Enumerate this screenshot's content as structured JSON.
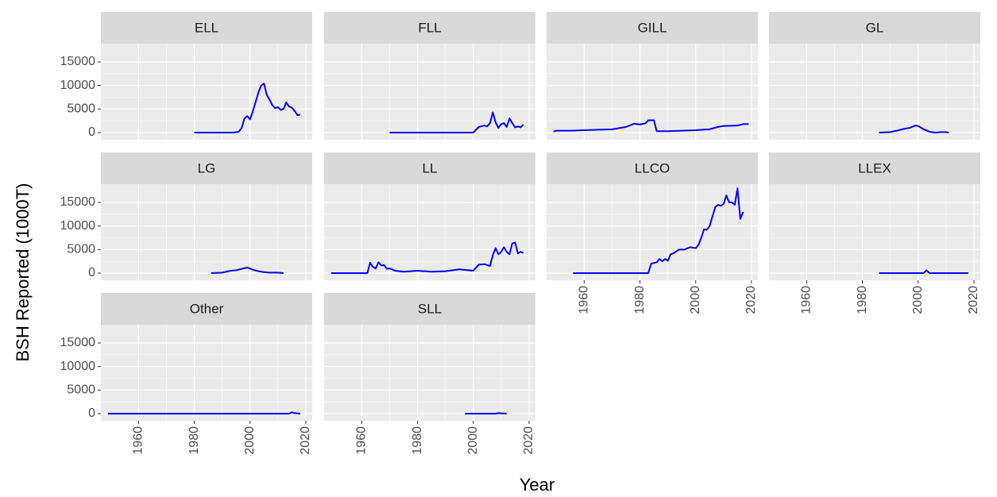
{
  "x_label": "Year",
  "y_label": "BSH Reported (1000T)",
  "chart_data": [
    {
      "type": "line",
      "title": "ELL",
      "xlim": [
        1946.5,
        2022.3
      ],
      "ylim": [
        -1520,
        18880
      ],
      "xticks": [
        1960,
        1980,
        2000,
        2020
      ],
      "yticks": [
        0,
        5000,
        10000,
        15000
      ],
      "grid": true,
      "x": [
        1980,
        1985,
        1990,
        1994,
        1996,
        1997,
        1998,
        1999,
        2000,
        2001,
        2002,
        2003,
        2004,
        2005,
        2006,
        2007,
        2008,
        2009,
        2010,
        2011,
        2012,
        2013,
        2014,
        2015,
        2016,
        2017,
        2018
      ],
      "series": [
        {
          "color": "#0000ff",
          "values": [
            0,
            0,
            0,
            0,
            200,
            1000,
            3000,
            3500,
            2800,
            4500,
            6500,
            8500,
            10000,
            10400,
            8000,
            7000,
            5800,
            5200,
            5400,
            4800,
            5000,
            6400,
            5500,
            5300,
            4600,
            3700,
            3800
          ]
        }
      ]
    },
    {
      "type": "line",
      "title": "FLL",
      "xlim": [
        1946.5,
        2022.3
      ],
      "ylim": [
        -1520,
        18880
      ],
      "xticks": [
        1960,
        1980,
        2000,
        2020
      ],
      "yticks": [
        0,
        5000,
        10000,
        15000
      ],
      "grid": true,
      "x": [
        1970,
        2000,
        2002,
        2004,
        2005,
        2006,
        2007,
        2008,
        2009,
        2010,
        2011,
        2012,
        2013,
        2014,
        2015,
        2016,
        2017,
        2018
      ],
      "series": [
        {
          "color": "#0000ff",
          "values": [
            0,
            0,
            1200,
            1500,
            1300,
            2000,
            4300,
            2200,
            1000,
            1800,
            2000,
            1200,
            3000,
            2000,
            1100,
            1300,
            1100,
            1700
          ]
        }
      ]
    },
    {
      "type": "line",
      "title": "GILL",
      "xlim": [
        1946.5,
        2022.3
      ],
      "ylim": [
        -1520,
        18880
      ],
      "xticks": [
        1960,
        1980,
        2000,
        2020
      ],
      "yticks": [
        0,
        5000,
        10000,
        15000
      ],
      "grid": true,
      "x": [
        1949,
        1950,
        1955,
        1960,
        1965,
        1970,
        1975,
        1978,
        1980,
        1982,
        1983,
        1985,
        1986,
        1990,
        1995,
        2000,
        2005,
        2008,
        2010,
        2015,
        2017,
        2019
      ],
      "series": [
        {
          "color": "#0000ff",
          "values": [
            200,
            400,
            400,
            500,
            600,
            700,
            1200,
            1900,
            1700,
            2000,
            2600,
            2600,
            300,
            300,
            400,
            500,
            700,
            1200,
            1400,
            1500,
            1800,
            1800
          ]
        }
      ]
    },
    {
      "type": "line",
      "title": "GL",
      "xlim": [
        1946.5,
        2022.3
      ],
      "ylim": [
        -1520,
        18880
      ],
      "xticks": [
        1960,
        1980,
        2000,
        2020
      ],
      "yticks": [
        0,
        5000,
        10000,
        15000
      ],
      "grid": true,
      "x": [
        1986,
        1990,
        1993,
        1995,
        1997,
        1999,
        2000,
        2002,
        2004,
        2006,
        2008,
        2010,
        2011
      ],
      "series": [
        {
          "color": "#0000ff",
          "values": [
            0,
            100,
            500,
            800,
            1000,
            1500,
            1400,
            700,
            200,
            0,
            100,
            100,
            0
          ]
        }
      ]
    },
    {
      "type": "line",
      "title": "LG",
      "xlim": [
        1946.5,
        2022.3
      ],
      "ylim": [
        -1520,
        18880
      ],
      "xticks": [
        1960,
        1980,
        2000,
        2020
      ],
      "yticks": [
        0,
        5000,
        10000,
        15000
      ],
      "grid": true,
      "x": [
        1986,
        1990,
        1993,
        1995,
        1997,
        1999,
        2001,
        2003,
        2005,
        2007,
        2010,
        2012
      ],
      "series": [
        {
          "color": "#0000ff",
          "values": [
            0,
            100,
            500,
            600,
            900,
            1200,
            700,
            400,
            200,
            100,
            100,
            0
          ]
        }
      ]
    },
    {
      "type": "line",
      "title": "LL",
      "xlim": [
        1946.5,
        2022.3
      ],
      "ylim": [
        -1520,
        18880
      ],
      "xticks": [
        1960,
        1980,
        2000,
        2020
      ],
      "yticks": [
        0,
        5000,
        10000,
        15000
      ],
      "grid": true,
      "x": [
        1949,
        1962,
        1963,
        1964,
        1965,
        1966,
        1967,
        1968,
        1969,
        1970,
        1972,
        1975,
        1980,
        1985,
        1990,
        1995,
        2000,
        2002,
        2004,
        2006,
        2007,
        2008,
        2009,
        2010,
        2011,
        2012,
        2013,
        2014,
        2015,
        2016,
        2017,
        2018
      ],
      "series": [
        {
          "color": "#0000ff",
          "values": [
            0,
            0,
            2200,
            1300,
            1000,
            2300,
            1600,
            1700,
            900,
            1000,
            500,
            300,
            500,
            300,
            400,
            800,
            500,
            1800,
            1900,
            1500,
            3800,
            5300,
            4000,
            4500,
            5500,
            4500,
            4000,
            6300,
            6500,
            4200,
            4500,
            4300
          ]
        }
      ]
    },
    {
      "type": "line",
      "title": "LLCO",
      "xlim": [
        1946.5,
        2022.3
      ],
      "ylim": [
        -1520,
        18880
      ],
      "xticks": [
        1960,
        1980,
        2000,
        2020
      ],
      "yticks": [
        0,
        5000,
        10000,
        15000
      ],
      "grid": true,
      "x": [
        1956,
        1983,
        1984,
        1986,
        1987,
        1988,
        1989,
        1990,
        1991,
        1992,
        1994,
        1996,
        1998,
        2000,
        2001,
        2002,
        2003,
        2004,
        2005,
        2006,
        2007,
        2008,
        2009,
        2010,
        2011,
        2012,
        2013,
        2014,
        2015,
        2016,
        2017
      ],
      "series": [
        {
          "color": "#0000ff",
          "values": [
            0,
            0,
            2000,
            2300,
            3000,
            2500,
            3000,
            2600,
            4000,
            4200,
            5000,
            5000,
            5500,
            5300,
            6000,
            7500,
            9300,
            9200,
            10000,
            12000,
            14000,
            14500,
            14300,
            14700,
            16500,
            15000,
            15000,
            14500,
            18000,
            11500,
            13000
          ]
        }
      ]
    },
    {
      "type": "line",
      "title": "LLEX",
      "xlim": [
        1946.5,
        2022.3
      ],
      "ylim": [
        -1520,
        18880
      ],
      "xticks": [
        1960,
        1980,
        2000,
        2020
      ],
      "yticks": [
        0,
        5000,
        10000,
        15000
      ],
      "grid": true,
      "x": [
        1986,
        2002,
        2003,
        2004,
        2018
      ],
      "series": [
        {
          "color": "#0000ff",
          "values": [
            0,
            0,
            600,
            0,
            0
          ]
        }
      ]
    },
    {
      "type": "line",
      "title": "Other",
      "xlim": [
        1946.5,
        2022.3
      ],
      "ylim": [
        -1520,
        18880
      ],
      "xticks": [
        1960,
        1980,
        2000,
        2020
      ],
      "yticks": [
        0,
        5000,
        10000,
        15000
      ],
      "grid": true,
      "x": [
        1949,
        2014,
        2015,
        2016,
        2018
      ],
      "series": [
        {
          "color": "#0000ff",
          "values": [
            0,
            0,
            300,
            100,
            0
          ]
        }
      ]
    },
    {
      "type": "line",
      "title": "SLL",
      "xlim": [
        1946.5,
        2022.3
      ],
      "ylim": [
        -1520,
        18880
      ],
      "xticks": [
        1960,
        1980,
        2000,
        2020
      ],
      "yticks": [
        0,
        5000,
        10000,
        15000
      ],
      "grid": true,
      "x": [
        1997,
        2008,
        2009,
        2012
      ],
      "series": [
        {
          "color": "#0000ff",
          "values": [
            0,
            0,
            100,
            0
          ]
        }
      ]
    }
  ]
}
